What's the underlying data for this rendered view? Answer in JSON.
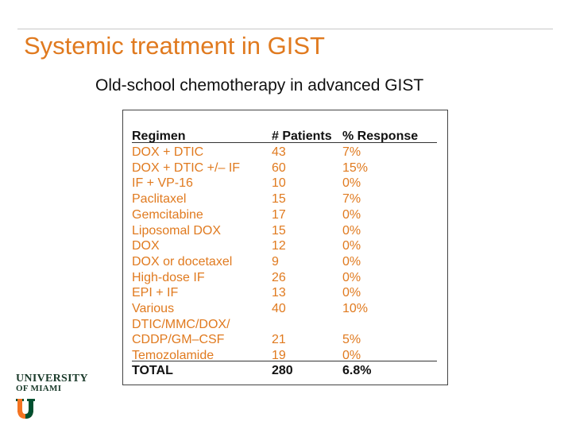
{
  "slide": {
    "title": "Systemic treatment in GIST",
    "subtitle": "Old-school chemotherapy in advanced GIST"
  },
  "table": {
    "headers": [
      "Regimen",
      "# Patients",
      "% Response"
    ],
    "rows": [
      [
        "DOX + DTIC",
        "43",
        "7%"
      ],
      [
        "DOX + DTIC +/– IF",
        "60",
        "15%"
      ],
      [
        "IF + VP-16",
        "10",
        "0%"
      ],
      [
        "Paclitaxel",
        "15",
        "7%"
      ],
      [
        "Gemcitabine",
        "17",
        "0%"
      ],
      [
        "Liposomal DOX",
        "15",
        "0%"
      ],
      [
        "DOX",
        "12",
        "0%"
      ],
      [
        "DOX or docetaxel",
        "9",
        "0%"
      ],
      [
        "High-dose IF",
        "26",
        "0%"
      ],
      [
        "EPI + IF",
        "13",
        "0%"
      ],
      [
        "Various",
        "40",
        "10%"
      ],
      [
        "DTIC/MMC/DOX/",
        "",
        ""
      ],
      [
        "CDDP/GM–CSF",
        "21",
        "5%"
      ],
      [
        "Temozolamide",
        "19",
        "0%"
      ]
    ],
    "total": [
      "TOTAL",
      "280",
      "6.8%"
    ]
  },
  "logo": {
    "line1": "UNIVERSITY",
    "line2": "OF MIAMI"
  },
  "colors": {
    "accent": "#e07a1f",
    "logo_green": "#005030",
    "logo_orange": "#f47321"
  }
}
